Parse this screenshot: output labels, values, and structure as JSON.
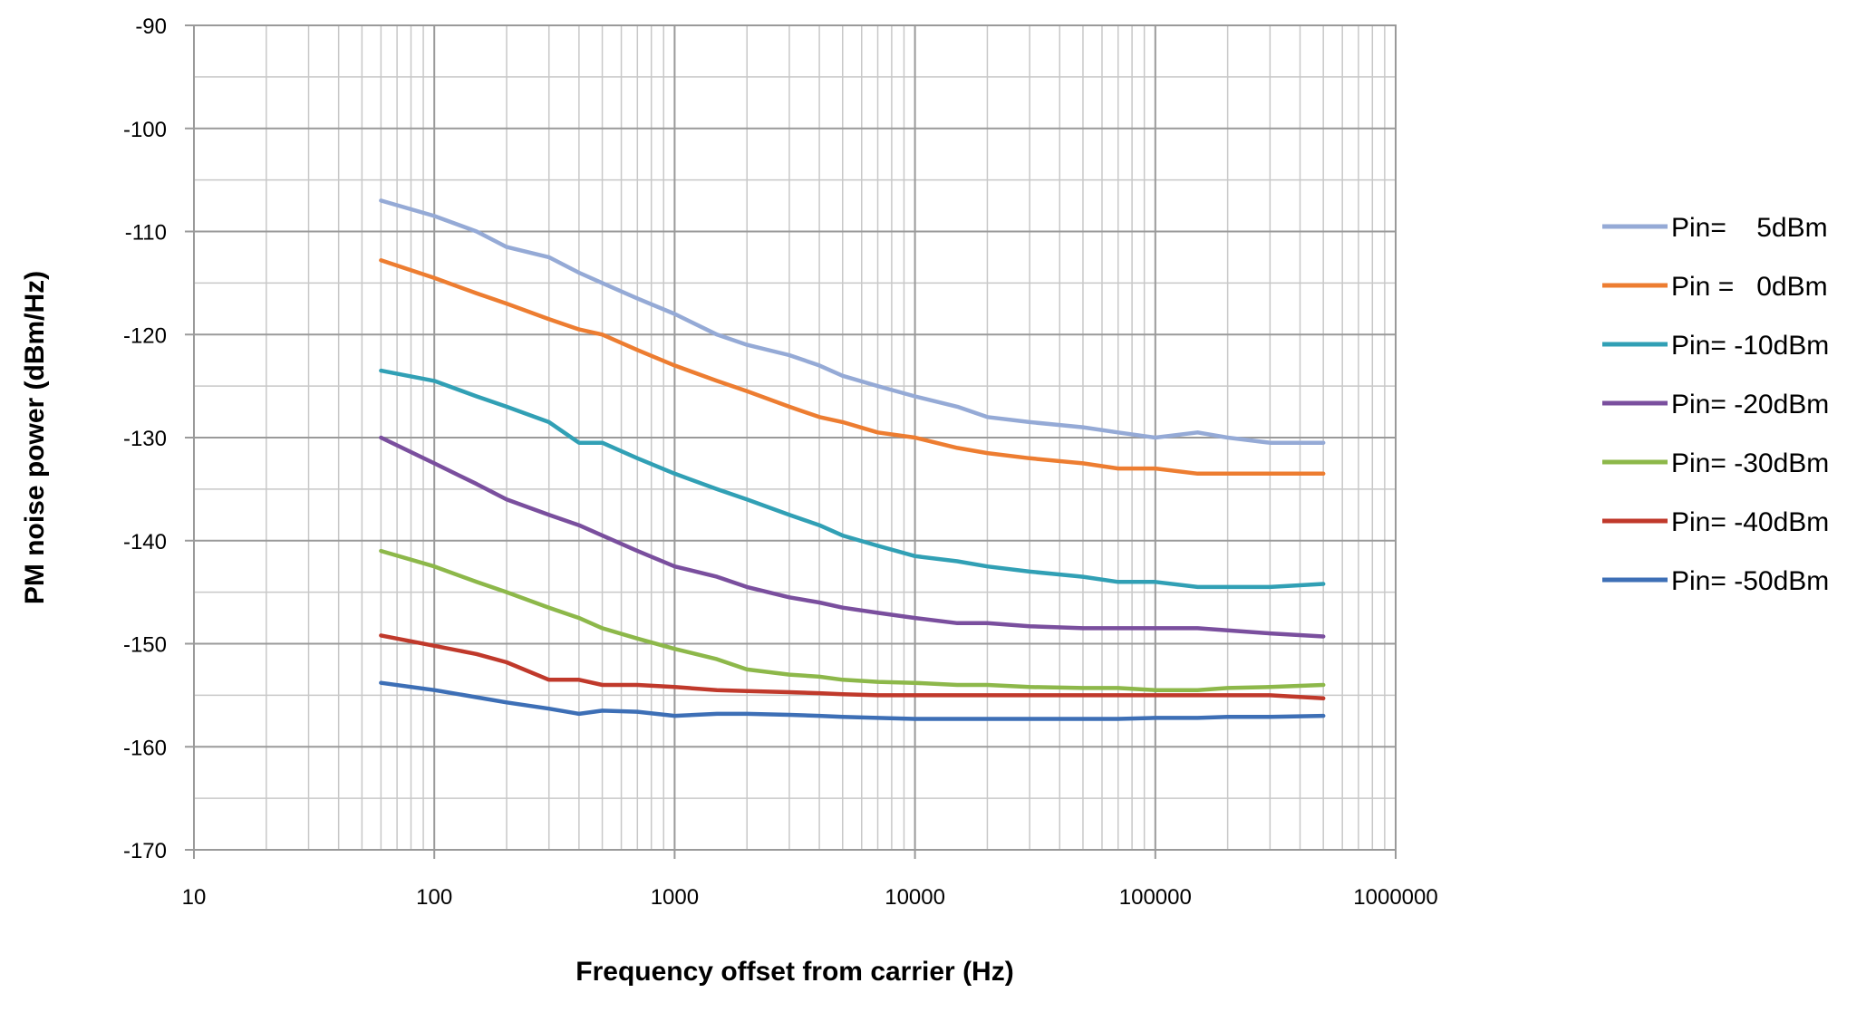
{
  "chart_data": {
    "type": "line",
    "title": "",
    "xlabel": "Frequency offset from carrier (Hz)",
    "ylabel": "PM noise power (dBm/Hz)",
    "xscale": "log",
    "xlim": [
      10,
      1000000
    ],
    "ylim": [
      -170,
      -90
    ],
    "grid": true,
    "legend_position": "right",
    "x_tick_labels": [
      "10",
      "100",
      "1000",
      "10000",
      "100000",
      "1000000"
    ],
    "x_tick_values": [
      10,
      100,
      1000,
      10000,
      100000,
      1000000
    ],
    "y_tick_labels": [
      "-90",
      "-100",
      "-110",
      "-120",
      "-130",
      "-140",
      "-150",
      "-160",
      "-170"
    ],
    "y_tick_values": [
      -90,
      -100,
      -110,
      -120,
      -130,
      -140,
      -150,
      -160,
      -170
    ],
    "series": [
      {
        "name": "Pin=    5dBm",
        "color": "#95aad6",
        "x": [
          60,
          100,
          150,
          200,
          300,
          400,
          500,
          700,
          1000,
          1500,
          2000,
          3000,
          4000,
          5000,
          7000,
          10000,
          15000,
          20000,
          30000,
          50000,
          70000,
          100000,
          150000,
          200000,
          300000,
          500000
        ],
        "y": [
          -107,
          -108.5,
          -110,
          -111.5,
          -112.5,
          -114,
          -115,
          -116.5,
          -118,
          -120,
          -121,
          -122,
          -123,
          -124,
          -125,
          -126,
          -127,
          -128,
          -128.5,
          -129,
          -129.5,
          -130,
          -129.5,
          -130,
          -130.5,
          -130.5
        ]
      },
      {
        "name": "Pin =   0dBm",
        "color": "#ed7d31",
        "x": [
          60,
          100,
          150,
          200,
          300,
          400,
          500,
          700,
          1000,
          1500,
          2000,
          3000,
          4000,
          5000,
          7000,
          10000,
          15000,
          20000,
          30000,
          50000,
          70000,
          100000,
          150000,
          200000,
          300000,
          500000
        ],
        "y": [
          -112.8,
          -114.5,
          -116,
          -117,
          -118.5,
          -119.5,
          -120,
          -121.5,
          -123,
          -124.5,
          -125.5,
          -127,
          -128,
          -128.5,
          -129.5,
          -130,
          -131,
          -131.5,
          -132,
          -132.5,
          -133,
          -133,
          -133.5,
          -133.5,
          -133.5,
          -133.5
        ]
      },
      {
        "name": "Pin= -10dBm",
        "color": "#31a0b5",
        "x": [
          60,
          100,
          150,
          200,
          300,
          400,
          500,
          700,
          1000,
          1500,
          2000,
          3000,
          4000,
          5000,
          7000,
          10000,
          15000,
          20000,
          30000,
          50000,
          70000,
          100000,
          150000,
          200000,
          300000,
          500000
        ],
        "y": [
          -123.5,
          -124.5,
          -126,
          -127,
          -128.5,
          -130.5,
          -130.5,
          -132,
          -133.5,
          -135,
          -136,
          -137.5,
          -138.5,
          -139.5,
          -140.5,
          -141.5,
          -142,
          -142.5,
          -143,
          -143.5,
          -144,
          -144,
          -144.5,
          -144.5,
          -144.5,
          -144.2
        ]
      },
      {
        "name": "Pin= -20dBm",
        "color": "#7a4f9e",
        "x": [
          60,
          100,
          150,
          200,
          300,
          400,
          500,
          700,
          1000,
          1500,
          2000,
          3000,
          4000,
          5000,
          7000,
          10000,
          15000,
          20000,
          30000,
          50000,
          70000,
          100000,
          150000,
          200000,
          300000,
          500000
        ],
        "y": [
          -130,
          -132.5,
          -134.5,
          -136,
          -137.5,
          -138.5,
          -139.5,
          -141,
          -142.5,
          -143.5,
          -144.5,
          -145.5,
          -146,
          -146.5,
          -147,
          -147.5,
          -148,
          -148,
          -148.3,
          -148.5,
          -148.5,
          -148.5,
          -148.5,
          -148.7,
          -149,
          -149.3
        ]
      },
      {
        "name": "Pin= -30dBm",
        "color": "#8db84a",
        "x": [
          60,
          100,
          150,
          200,
          300,
          400,
          500,
          700,
          1000,
          1500,
          2000,
          3000,
          4000,
          5000,
          7000,
          10000,
          15000,
          20000,
          30000,
          50000,
          70000,
          100000,
          150000,
          200000,
          300000,
          500000
        ],
        "y": [
          -141,
          -142.5,
          -144,
          -145,
          -146.5,
          -147.5,
          -148.5,
          -149.5,
          -150.5,
          -151.5,
          -152.5,
          -153,
          -153.2,
          -153.5,
          -153.7,
          -153.8,
          -154,
          -154,
          -154.2,
          -154.3,
          -154.3,
          -154.5,
          -154.5,
          -154.3,
          -154.2,
          -154
        ]
      },
      {
        "name": "Pin= -40dBm",
        "color": "#c0392b",
        "x": [
          60,
          100,
          150,
          200,
          300,
          400,
          500,
          700,
          1000,
          1500,
          2000,
          3000,
          4000,
          5000,
          7000,
          10000,
          15000,
          20000,
          30000,
          50000,
          70000,
          100000,
          150000,
          200000,
          300000,
          500000
        ],
        "y": [
          -149.2,
          -150.2,
          -151,
          -151.8,
          -153.5,
          -153.5,
          -154,
          -154,
          -154.2,
          -154.5,
          -154.6,
          -154.7,
          -154.8,
          -154.9,
          -155,
          -155,
          -155,
          -155,
          -155,
          -155,
          -155,
          -155,
          -155,
          -155,
          -155,
          -155.3
        ]
      },
      {
        "name": "Pin= -50dBm",
        "color": "#3d6fb6",
        "x": [
          60,
          100,
          150,
          200,
          300,
          400,
          500,
          700,
          1000,
          1500,
          2000,
          3000,
          4000,
          5000,
          7000,
          10000,
          15000,
          20000,
          30000,
          50000,
          70000,
          100000,
          150000,
          200000,
          300000,
          500000
        ],
        "y": [
          -153.8,
          -154.5,
          -155.2,
          -155.7,
          -156.3,
          -156.8,
          -156.5,
          -156.6,
          -157,
          -156.8,
          -156.8,
          -156.9,
          -157,
          -157.1,
          -157.2,
          -157.3,
          -157.3,
          -157.3,
          -157.3,
          -157.3,
          -157.3,
          -157.2,
          -157.2,
          -157.1,
          -157.1,
          -157
        ]
      }
    ]
  }
}
